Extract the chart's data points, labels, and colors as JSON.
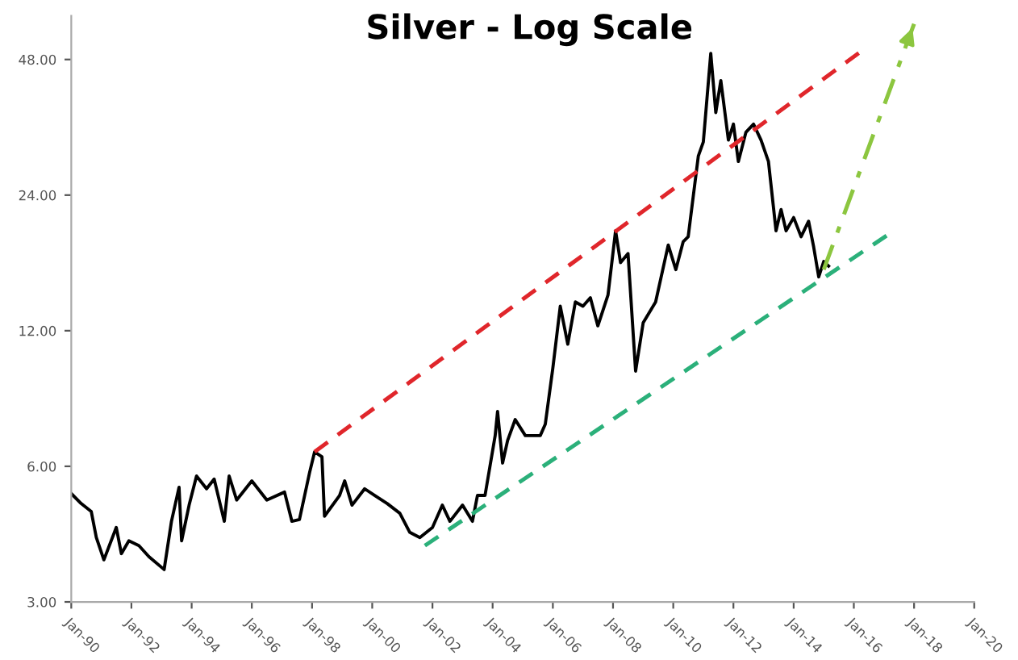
{
  "chart_data": {
    "type": "line",
    "title": "Silver - Log Scale",
    "log": "y",
    "grid": false,
    "legend": false,
    "marker": "none",
    "xlim": [
      "1990-01-01",
      "2020-01-01"
    ],
    "xticks": [
      {
        "value": "1990-01-01",
        "label": "Jan-90"
      },
      {
        "value": "1992-01-01",
        "label": "Jan-92"
      },
      {
        "value": "1994-01-01",
        "label": "Jan-94"
      },
      {
        "value": "1996-01-01",
        "label": "Jan-96"
      },
      {
        "value": "1998-01-01",
        "label": "Jan-98"
      },
      {
        "value": "2000-01-01",
        "label": "Jan-00"
      },
      {
        "value": "2002-01-01",
        "label": "Jan-02"
      },
      {
        "value": "2004-01-01",
        "label": "Jan-04"
      },
      {
        "value": "2006-01-01",
        "label": "Jan-06"
      },
      {
        "value": "2008-01-01",
        "label": "Jan-08"
      },
      {
        "value": "2010-01-01",
        "label": "Jan-10"
      },
      {
        "value": "2012-01-01",
        "label": "Jan-12"
      },
      {
        "value": "2014-01-01",
        "label": "Jan-14"
      },
      {
        "value": "2016-01-01",
        "label": "Jan-16"
      },
      {
        "value": "2018-01-01",
        "label": "Jan-18"
      },
      {
        "value": "2020-01-01",
        "label": "Jan-20"
      }
    ],
    "ylim": [
      3,
      60
    ],
    "yticks": [
      {
        "value": 3,
        "label": "3.00"
      },
      {
        "value": 6,
        "label": "6.00"
      },
      {
        "value": 12,
        "label": "12.00"
      },
      {
        "value": 24,
        "label": "24.00"
      },
      {
        "value": 48,
        "label": "48.00"
      }
    ],
    "series": [
      {
        "color": "#000000",
        "line_style": "solid",
        "x": [
          "1990-01",
          "1990-05",
          "1990-09",
          "1990-11",
          "1991-02",
          "1991-07",
          "1991-09",
          "1991-12",
          "1992-04",
          "1992-08",
          "1993-02",
          "1993-05",
          "1993-08",
          "1993-09",
          "1993-12",
          "1994-03",
          "1994-07",
          "1994-10",
          "1995-02",
          "1995-04",
          "1995-07",
          "1996-01",
          "1996-07",
          "1997-02",
          "1997-05",
          "1997-08",
          "1997-12",
          "1998-02",
          "1998-05",
          "1998-06",
          "1998-12",
          "1999-02",
          "1999-05",
          "1999-10",
          "2000-02",
          "2000-07",
          "2000-12",
          "2001-04",
          "2001-08",
          "2002-01",
          "2002-05",
          "2002-08",
          "2003-01",
          "2003-05",
          "2003-07",
          "2003-10",
          "2004-02",
          "2004-03",
          "2004-05",
          "2004-07",
          "2004-10",
          "2005-02",
          "2005-08",
          "2005-10",
          "2006-01",
          "2006-04",
          "2006-07",
          "2006-10",
          "2007-01",
          "2007-04",
          "2007-07",
          "2007-11",
          "2008-02",
          "2008-04",
          "2008-07",
          "2008-10",
          "2009-01",
          "2009-06",
          "2009-11",
          "2010-02",
          "2010-05",
          "2010-07",
          "2010-11",
          "2011-01",
          "2011-04",
          "2011-06",
          "2011-08",
          "2011-11",
          "2012-01",
          "2012-03",
          "2012-06",
          "2012-09",
          "2012-12",
          "2013-03",
          "2013-06",
          "2013-08",
          "2013-10",
          "2014-01",
          "2014-04",
          "2014-07",
          "2014-09",
          "2014-11",
          "2015-01",
          "2015-03"
        ],
        "values": [
          5.22,
          4.96,
          4.76,
          4.17,
          3.72,
          4.39,
          3.84,
          4.1,
          4.0,
          3.78,
          3.54,
          4.53,
          5.39,
          4.1,
          4.92,
          5.71,
          5.35,
          5.62,
          4.53,
          5.71,
          5.05,
          5.57,
          5.05,
          5.26,
          4.53,
          4.57,
          5.8,
          6.46,
          6.3,
          4.65,
          5.17,
          5.57,
          4.92,
          5.35,
          5.17,
          4.96,
          4.72,
          4.28,
          4.17,
          4.39,
          4.92,
          4.53,
          4.92,
          4.53,
          5.17,
          5.17,
          7.02,
          7.94,
          6.1,
          6.85,
          7.62,
          7.02,
          7.02,
          7.44,
          9.92,
          13.6,
          11.2,
          13.9,
          13.6,
          14.2,
          12.3,
          14.4,
          20.0,
          17.0,
          17.8,
          9.76,
          12.5,
          13.9,
          18.6,
          16.4,
          18.9,
          19.4,
          29.3,
          31.5,
          49.5,
          36.6,
          43.1,
          31.8,
          34.5,
          28.5,
          33.1,
          34.5,
          31.8,
          28.5,
          20.0,
          22.3,
          20.0,
          21.4,
          19.4,
          21.0,
          18.4,
          15.8,
          17.1,
          16.7
        ]
      },
      {
        "color": "#e0262b",
        "line_style": "dashed",
        "x": [
          "1998-02",
          "2016-03"
        ],
        "values": [
          6.46,
          49.6
        ]
      },
      {
        "color": "#2bb07a",
        "line_style": "dashed",
        "x": [
          "2001-10",
          "2017-02"
        ],
        "values": [
          4.0,
          19.5
        ]
      },
      {
        "color": "#8cc63f",
        "line_style": "dashdot",
        "x": [
          "2015-01",
          "2018-01"
        ],
        "values": [
          16.4,
          57.6
        ]
      }
    ]
  }
}
